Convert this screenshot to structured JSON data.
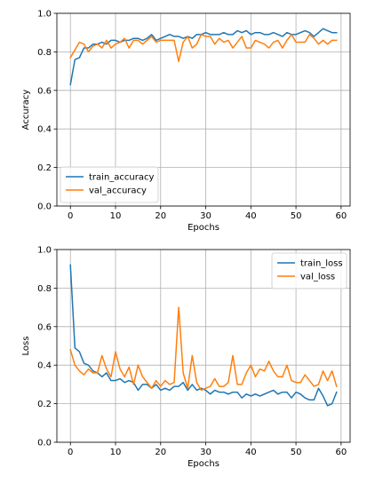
{
  "chart_data": [
    {
      "type": "line",
      "title": "",
      "xlabel": "Epochs",
      "ylabel": "Accuracy",
      "xlim": [
        -3,
        62
      ],
      "ylim": [
        0.0,
        1.0
      ],
      "xticks": [
        0,
        10,
        20,
        30,
        40,
        50,
        60
      ],
      "yticks": [
        0.0,
        0.2,
        0.4,
        0.6,
        0.8,
        1.0
      ],
      "ytick_labels": [
        "0.0",
        "0.2",
        "0.4",
        "0.6",
        "0.8",
        "1.0"
      ],
      "grid": true,
      "legend_position": "lower-left",
      "series": [
        {
          "name": "train_accuracy",
          "color": "#1f77b4",
          "x": [
            0,
            1,
            2,
            3,
            4,
            5,
            6,
            7,
            8,
            9,
            10,
            11,
            12,
            13,
            14,
            15,
            16,
            17,
            18,
            19,
            20,
            21,
            22,
            23,
            24,
            25,
            26,
            27,
            28,
            29,
            30,
            31,
            32,
            33,
            34,
            35,
            36,
            37,
            38,
            39,
            40,
            41,
            42,
            43,
            44,
            45,
            46,
            47,
            48,
            49,
            50,
            51,
            52,
            53,
            54,
            55,
            56,
            57,
            58,
            59
          ],
          "values": [
            0.63,
            0.76,
            0.77,
            0.82,
            0.82,
            0.84,
            0.84,
            0.85,
            0.84,
            0.86,
            0.86,
            0.85,
            0.86,
            0.86,
            0.87,
            0.87,
            0.86,
            0.87,
            0.89,
            0.86,
            0.87,
            0.88,
            0.89,
            0.88,
            0.88,
            0.87,
            0.88,
            0.87,
            0.89,
            0.89,
            0.9,
            0.89,
            0.89,
            0.89,
            0.9,
            0.89,
            0.89,
            0.91,
            0.9,
            0.91,
            0.89,
            0.9,
            0.9,
            0.89,
            0.89,
            0.9,
            0.89,
            0.88,
            0.9,
            0.89,
            0.89,
            0.9,
            0.91,
            0.9,
            0.88,
            0.9,
            0.92,
            0.91,
            0.9,
            0.9
          ]
        },
        {
          "name": "val_accuracy",
          "color": "#ff7f0e",
          "x": [
            0,
            1,
            2,
            3,
            4,
            5,
            6,
            7,
            8,
            9,
            10,
            11,
            12,
            13,
            14,
            15,
            16,
            17,
            18,
            19,
            20,
            21,
            22,
            23,
            24,
            25,
            26,
            27,
            28,
            29,
            30,
            31,
            32,
            33,
            34,
            35,
            36,
            37,
            38,
            39,
            40,
            41,
            42,
            43,
            44,
            45,
            46,
            47,
            48,
            49,
            50,
            51,
            52,
            53,
            54,
            55,
            56,
            57,
            58,
            59
          ],
          "values": [
            0.77,
            0.81,
            0.85,
            0.84,
            0.8,
            0.83,
            0.84,
            0.82,
            0.86,
            0.82,
            0.84,
            0.85,
            0.87,
            0.82,
            0.86,
            0.86,
            0.84,
            0.86,
            0.88,
            0.85,
            0.86,
            0.86,
            0.86,
            0.86,
            0.75,
            0.85,
            0.88,
            0.82,
            0.84,
            0.89,
            0.88,
            0.88,
            0.84,
            0.87,
            0.85,
            0.86,
            0.82,
            0.85,
            0.88,
            0.82,
            0.82,
            0.86,
            0.85,
            0.84,
            0.82,
            0.85,
            0.86,
            0.82,
            0.86,
            0.89,
            0.85,
            0.85,
            0.85,
            0.89,
            0.87,
            0.84,
            0.86,
            0.84,
            0.86,
            0.86
          ]
        }
      ]
    },
    {
      "type": "line",
      "title": "",
      "xlabel": "Epochs",
      "ylabel": "Loss",
      "xlim": [
        -3,
        62
      ],
      "ylim": [
        0.0,
        1.0
      ],
      "xticks": [
        0,
        10,
        20,
        30,
        40,
        50,
        60
      ],
      "yticks": [
        0.0,
        0.2,
        0.4,
        0.6,
        0.8,
        1.0
      ],
      "ytick_labels": [
        "0.0",
        "0.2",
        "0.4",
        "0.6",
        "0.8",
        "1.0"
      ],
      "grid": true,
      "legend_position": "upper-right",
      "series": [
        {
          "name": "train_loss",
          "color": "#1f77b4",
          "x": [
            0,
            1,
            2,
            3,
            4,
            5,
            6,
            7,
            8,
            9,
            10,
            11,
            12,
            13,
            14,
            15,
            16,
            17,
            18,
            19,
            20,
            21,
            22,
            23,
            24,
            25,
            26,
            27,
            28,
            29,
            30,
            31,
            32,
            33,
            34,
            35,
            36,
            37,
            38,
            39,
            40,
            41,
            42,
            43,
            44,
            45,
            46,
            47,
            48,
            49,
            50,
            51,
            52,
            53,
            54,
            55,
            56,
            57,
            58,
            59
          ],
          "values": [
            0.92,
            0.49,
            0.47,
            0.41,
            0.4,
            0.37,
            0.36,
            0.34,
            0.36,
            0.32,
            0.32,
            0.33,
            0.31,
            0.32,
            0.31,
            0.27,
            0.3,
            0.3,
            0.28,
            0.3,
            0.27,
            0.28,
            0.27,
            0.29,
            0.29,
            0.31,
            0.27,
            0.3,
            0.27,
            0.28,
            0.27,
            0.25,
            0.27,
            0.26,
            0.26,
            0.25,
            0.26,
            0.26,
            0.23,
            0.25,
            0.24,
            0.25,
            0.24,
            0.25,
            0.26,
            0.27,
            0.25,
            0.26,
            0.26,
            0.23,
            0.26,
            0.25,
            0.23,
            0.22,
            0.22,
            0.28,
            0.24,
            0.19,
            0.2,
            0.26
          ]
        },
        {
          "name": "val_loss",
          "color": "#ff7f0e",
          "x": [
            0,
            1,
            2,
            3,
            4,
            5,
            6,
            7,
            8,
            9,
            10,
            11,
            12,
            13,
            14,
            15,
            16,
            17,
            18,
            19,
            20,
            21,
            22,
            23,
            24,
            25,
            26,
            27,
            28,
            29,
            30,
            31,
            32,
            33,
            34,
            35,
            36,
            37,
            38,
            39,
            40,
            41,
            42,
            43,
            44,
            45,
            46,
            47,
            48,
            49,
            50,
            51,
            52,
            53,
            54,
            55,
            56,
            57,
            58,
            59
          ],
          "values": [
            0.48,
            0.4,
            0.37,
            0.35,
            0.38,
            0.36,
            0.36,
            0.45,
            0.38,
            0.34,
            0.47,
            0.38,
            0.34,
            0.39,
            0.3,
            0.4,
            0.34,
            0.31,
            0.28,
            0.32,
            0.29,
            0.32,
            0.3,
            0.31,
            0.7,
            0.36,
            0.28,
            0.45,
            0.31,
            0.27,
            0.28,
            0.29,
            0.33,
            0.29,
            0.29,
            0.31,
            0.45,
            0.3,
            0.3,
            0.36,
            0.4,
            0.34,
            0.38,
            0.37,
            0.42,
            0.37,
            0.34,
            0.34,
            0.4,
            0.32,
            0.31,
            0.31,
            0.35,
            0.32,
            0.29,
            0.3,
            0.37,
            0.32,
            0.37,
            0.29
          ]
        }
      ]
    }
  ]
}
